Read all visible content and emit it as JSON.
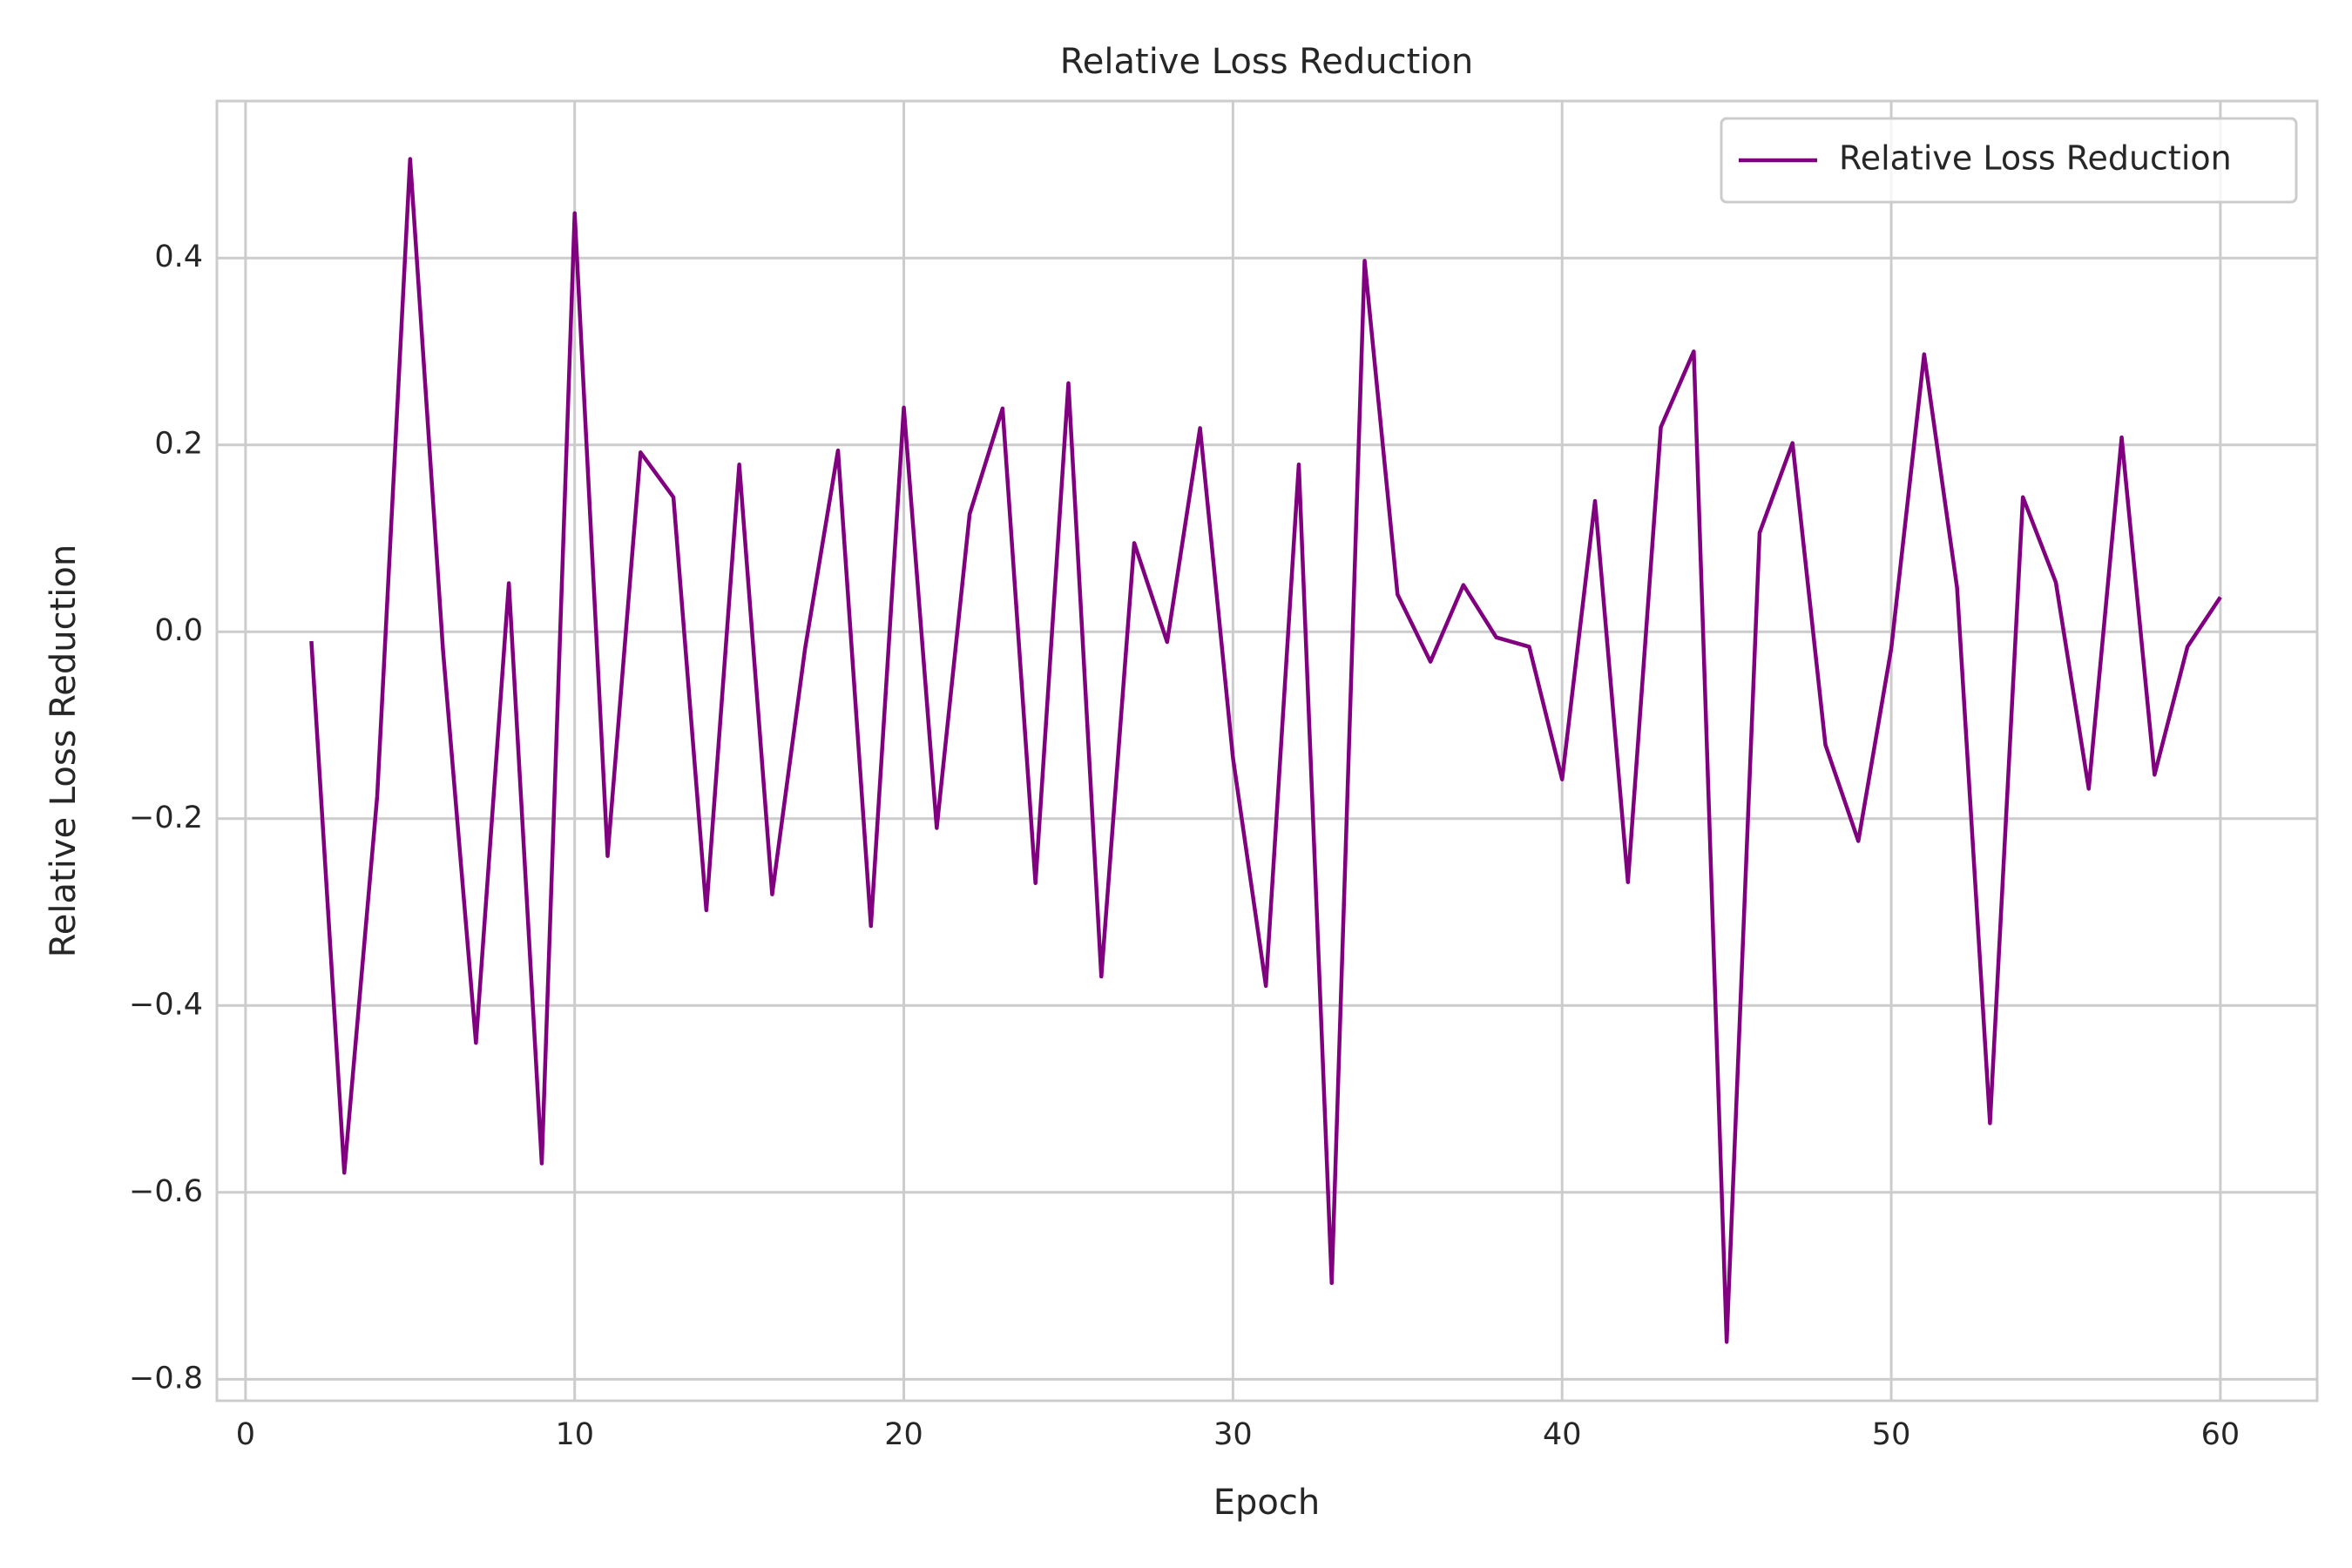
{
  "chart_data": {
    "type": "line",
    "title": "Relative Loss Reduction",
    "xlabel": "Epoch",
    "ylabel": "Relative Loss Reduction",
    "x": [
      2,
      3,
      4,
      5,
      6,
      7,
      8,
      9,
      10,
      11,
      12,
      13,
      14,
      15,
      16,
      17,
      18,
      19,
      20,
      21,
      22,
      23,
      24,
      25,
      26,
      27,
      28,
      29,
      30,
      31,
      32,
      33,
      34,
      35,
      36,
      37,
      38,
      39,
      40,
      41,
      42,
      43,
      44,
      45,
      46,
      47,
      48,
      49,
      50,
      51,
      52,
      53,
      54,
      55,
      56,
      57,
      58,
      59,
      60
    ],
    "series": [
      {
        "name": "Relative Loss Reduction",
        "color": "#800080",
        "values": [
          -0.01,
          -0.579,
          -0.176,
          0.506,
          -0.02,
          -0.44,
          0.052,
          -0.569,
          0.448,
          -0.24,
          0.192,
          0.144,
          -0.298,
          0.179,
          -0.281,
          -0.018,
          0.194,
          -0.315,
          0.24,
          -0.21,
          0.126,
          0.239,
          -0.269,
          0.266,
          -0.369,
          0.095,
          -0.011,
          0.218,
          -0.135,
          -0.379,
          0.179,
          -0.697,
          0.397,
          0.04,
          -0.032,
          0.05,
          -0.006,
          -0.016,
          -0.158,
          0.14,
          -0.268,
          0.219,
          0.3,
          -0.76,
          0.106,
          0.202,
          -0.121,
          -0.224,
          -0.018,
          0.297,
          0.047,
          -0.526,
          0.144,
          0.053,
          -0.168,
          0.208,
          -0.153,
          -0.016,
          0.037
        ]
      }
    ],
    "xlim": [
      -0.87,
      62.94
    ],
    "ylim": [
      -0.823,
      0.568
    ],
    "xticks": [
      0,
      10,
      20,
      30,
      40,
      50,
      60
    ],
    "yticks": [
      {
        "value": -0.8,
        "label": "−0.8"
      },
      {
        "value": -0.6,
        "label": "−0.6"
      },
      {
        "value": -0.4,
        "label": "−0.4"
      },
      {
        "value": -0.2,
        "label": "−0.2"
      },
      {
        "value": 0,
        "label": "0.0"
      },
      0.2,
      0.4
    ],
    "grid": true,
    "legend": "upper right"
  }
}
